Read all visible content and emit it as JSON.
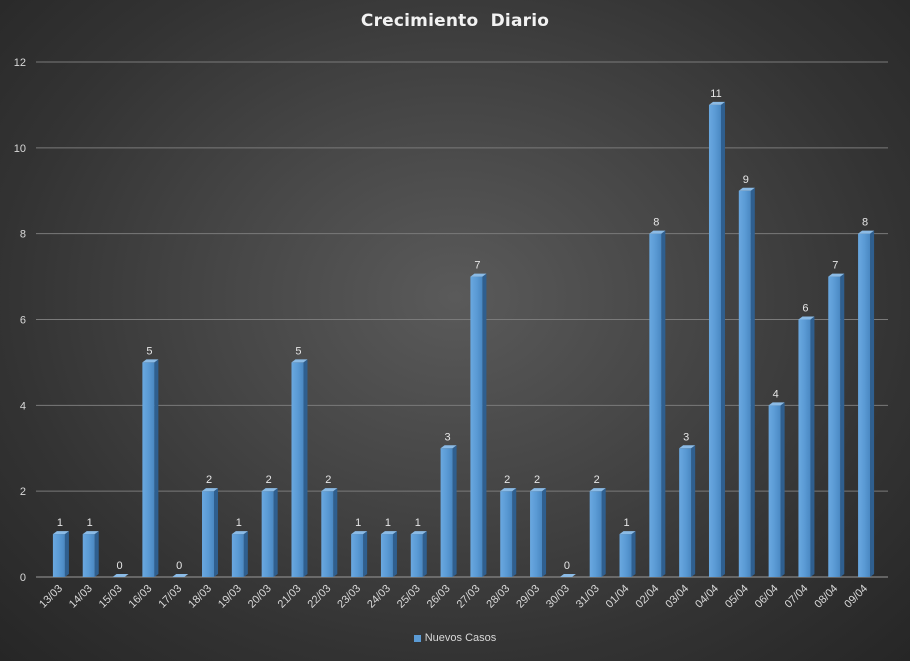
{
  "chart_data": {
    "type": "bar",
    "title": "Crecimiento  Diario",
    "categories": [
      "13/03",
      "14/03",
      "15/03",
      "16/03",
      "17/03",
      "18/03",
      "19/03",
      "20/03",
      "21/03",
      "22/03",
      "23/03",
      "24/03",
      "25/03",
      "26/03",
      "27/03",
      "28/03",
      "29/03",
      "30/03",
      "31/03",
      "01/04",
      "02/04",
      "03/04",
      "04/04",
      "05/04",
      "06/04",
      "07/04",
      "08/04",
      "09/04"
    ],
    "series": [
      {
        "name": "Nuevos Casos",
        "values": [
          1,
          1,
          0,
          5,
          0,
          2,
          1,
          2,
          5,
          2,
          1,
          1,
          1,
          3,
          7,
          2,
          2,
          0,
          2,
          1,
          8,
          3,
          11,
          9,
          4,
          6,
          7,
          8
        ],
        "color": "#5b9bd5"
      }
    ],
    "ylim": [
      0,
      12
    ],
    "yticks": [
      0,
      2,
      4,
      6,
      8,
      10,
      12
    ],
    "grid": true,
    "data_labels": true,
    "legend_position": "bottom",
    "style": "3d-column"
  }
}
